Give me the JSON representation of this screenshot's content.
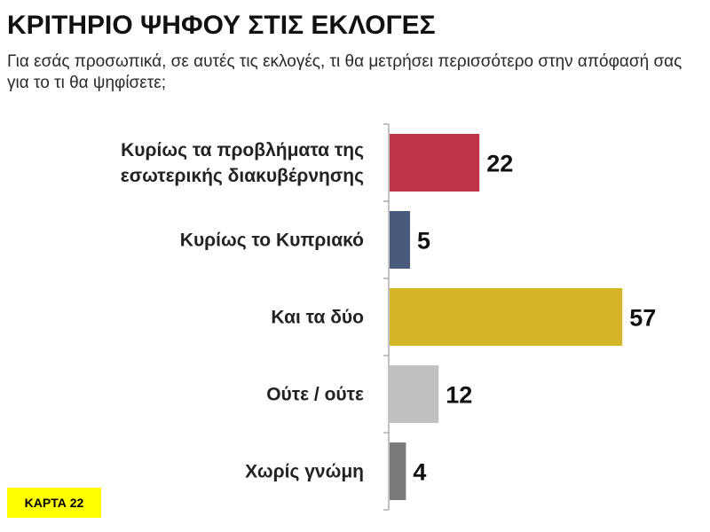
{
  "header": {
    "title": "ΚΡΙΤΗΡΙΟ ΨΗΦΟΥ ΣΤΙΣ ΕΚΛΟΓΕΣ",
    "subtitle": "Για εσάς προσωπικά, σε αυτές τις εκλογές, τι θα μετρήσει περισσότερο στην απόφασή σας για το τι θα ψηφίσετε;"
  },
  "footer": {
    "card_label": "ΚΑΡΤΑ 22"
  },
  "chart_data": {
    "type": "bar",
    "orientation": "horizontal",
    "categories": [
      [
        "Κυρίως τα προβλήματα της",
        "εσωτερικής διακυβέρνησης"
      ],
      [
        "Κυρίως το Κυπριακό"
      ],
      [
        "Και τα δύο"
      ],
      [
        "Ούτε / ούτε"
      ],
      [
        "Χωρίς γνώμη"
      ]
    ],
    "values": [
      22,
      5,
      57,
      12,
      4
    ],
    "colors": [
      "#c0344a",
      "#4a5a7c",
      "#d4b526",
      "#c0c0c0",
      "#7a7a7a"
    ],
    "xlim": [
      0,
      100
    ],
    "data_labels": true,
    "grid": false,
    "legend": "none"
  }
}
